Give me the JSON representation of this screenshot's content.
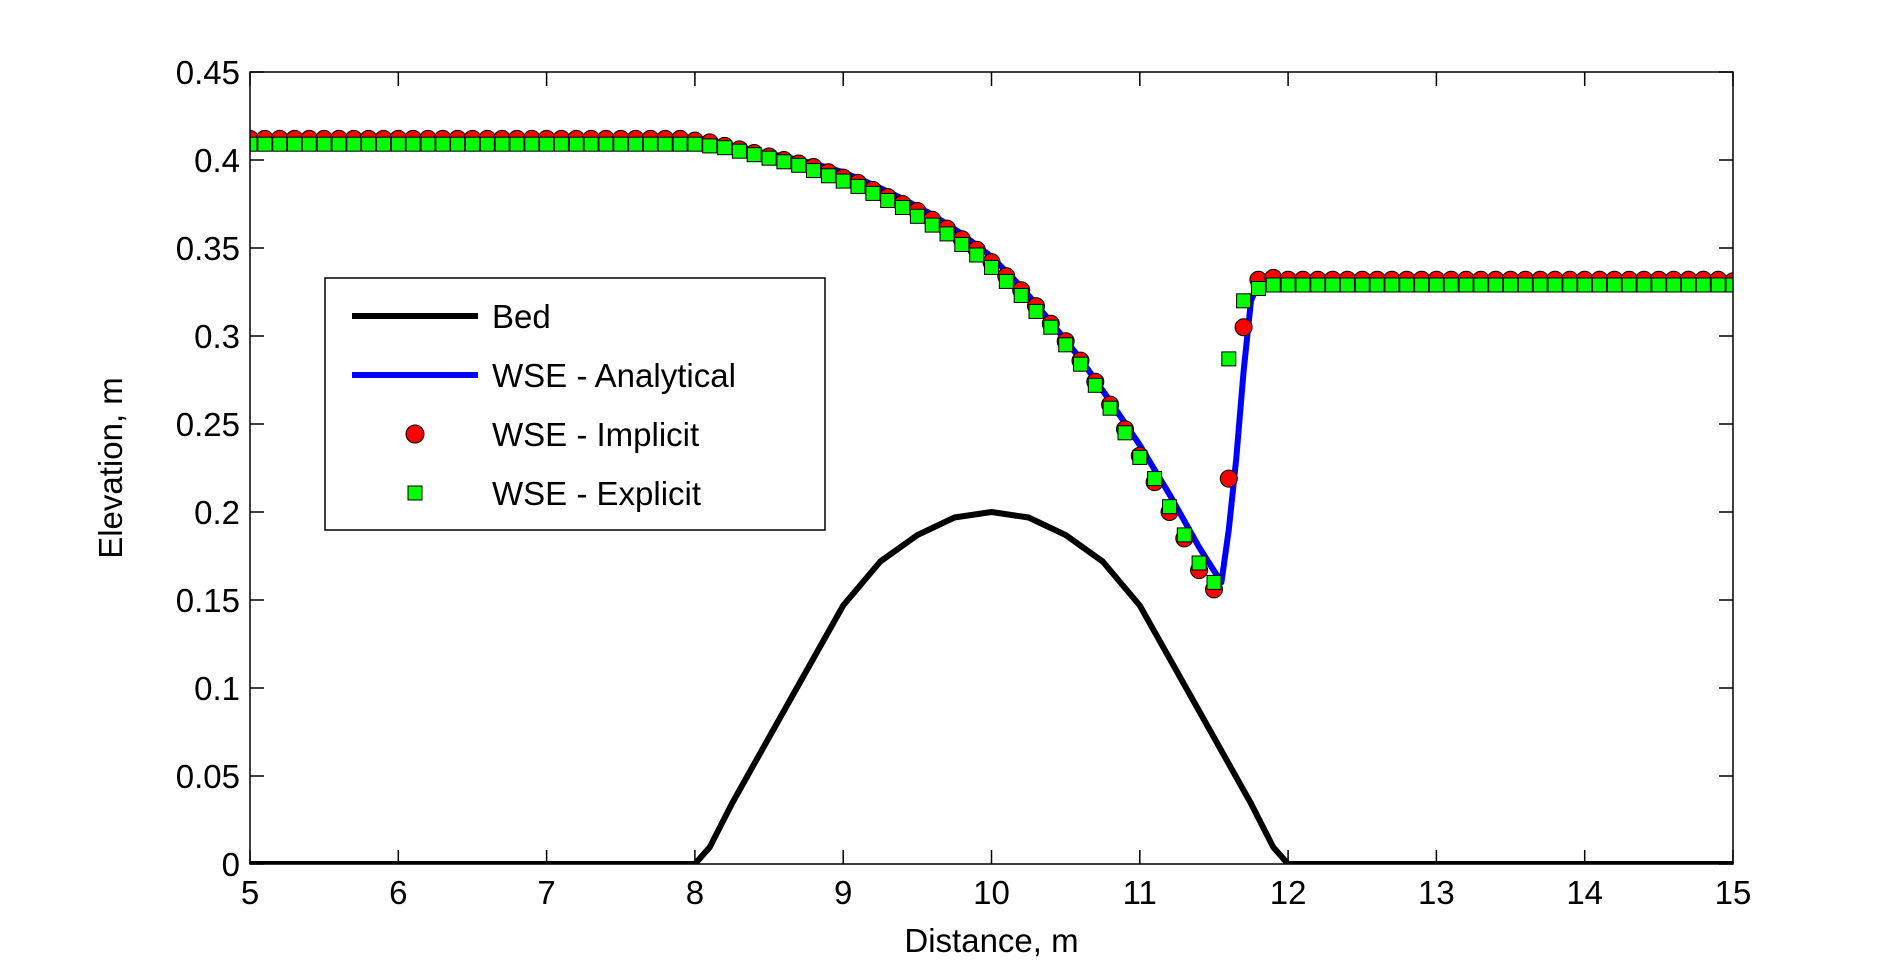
{
  "chart_data": {
    "type": "line",
    "title": "",
    "xlabel": "Distance, m",
    "ylabel": "Elevation, m",
    "xlim": [
      5,
      15
    ],
    "ylim": [
      0,
      0.45
    ],
    "xticks": [
      5,
      6,
      7,
      8,
      9,
      10,
      11,
      12,
      13,
      14,
      15
    ],
    "yticks": [
      0,
      0.05,
      0.1,
      0.15,
      0.2,
      0.25,
      0.3,
      0.35,
      0.4,
      0.45
    ],
    "xtick_labels": [
      "5",
      "6",
      "7",
      "8",
      "9",
      "10",
      "11",
      "12",
      "13",
      "14",
      "15"
    ],
    "ytick_labels": [
      "0",
      "0.05",
      "0.1",
      "0.15",
      "0.2",
      "0.25",
      "0.3",
      "0.35",
      "0.4",
      "0.45"
    ],
    "grid": false,
    "legend_position": "left",
    "series": [
      {
        "name": "Bed",
        "style": "line",
        "color": "#000000",
        "x": [
          5,
          7.9,
          8.0,
          8.1,
          8.25,
          8.5,
          8.75,
          9.0,
          9.25,
          9.5,
          9.75,
          10.0,
          10.25,
          10.5,
          10.75,
          11.0,
          11.25,
          11.5,
          11.75,
          11.9,
          12.0,
          12.1,
          15
        ],
        "y": [
          0,
          0,
          0.0,
          0.0095,
          0.0344,
          0.0719,
          0.1094,
          0.1469,
          0.1719,
          0.1869,
          0.1969,
          0.2,
          0.1969,
          0.1869,
          0.1719,
          0.1469,
          0.1094,
          0.0719,
          0.0344,
          0.0095,
          0.0,
          0,
          0
        ]
      },
      {
        "name": "WSE - Analytical",
        "style": "line",
        "color": "#0000ff",
        "x": [
          5,
          8.0,
          8.2,
          8.4,
          8.6,
          8.8,
          9.0,
          9.2,
          9.4,
          9.6,
          9.8,
          10.0,
          10.2,
          10.4,
          10.6,
          10.8,
          11.0,
          11.2,
          11.4,
          11.55,
          11.6,
          11.65,
          11.7,
          11.75,
          11.8,
          11.9,
          12.0,
          12.2,
          15
        ],
        "y": [
          0.41,
          0.41,
          0.408,
          0.405,
          0.402,
          0.398,
          0.393,
          0.386,
          0.378,
          0.369,
          0.358,
          0.345,
          0.328,
          0.308,
          0.287,
          0.263,
          0.238,
          0.21,
          0.18,
          0.16,
          0.19,
          0.23,
          0.28,
          0.32,
          0.33,
          0.331,
          0.331,
          0.331,
          0.331
        ]
      },
      {
        "name": "WSE - Implicit",
        "style": "marker-circle",
        "color": "#ff0000",
        "x": [
          5.0,
          5.1,
          5.2,
          5.3,
          5.4,
          5.5,
          5.6,
          5.7,
          5.8,
          5.9,
          6.0,
          6.1,
          6.2,
          6.3,
          6.4,
          6.5,
          6.6,
          6.7,
          6.8,
          6.9,
          7.0,
          7.1,
          7.2,
          7.3,
          7.4,
          7.5,
          7.6,
          7.7,
          7.8,
          7.9,
          8.0,
          8.1,
          8.2,
          8.3,
          8.4,
          8.5,
          8.6,
          8.7,
          8.8,
          8.9,
          9.0,
          9.1,
          9.2,
          9.3,
          9.4,
          9.5,
          9.6,
          9.7,
          9.8,
          9.9,
          10.0,
          10.1,
          10.2,
          10.3,
          10.4,
          10.5,
          10.6,
          10.7,
          10.8,
          10.9,
          11.0,
          11.1,
          11.2,
          11.3,
          11.4,
          11.5,
          11.6,
          11.7,
          11.8,
          11.9,
          12.0,
          12.1,
          12.2,
          12.3,
          12.4,
          12.5,
          12.6,
          12.7,
          12.8,
          12.9,
          13.0,
          13.1,
          13.2,
          13.3,
          13.4,
          13.5,
          13.6,
          13.7,
          13.8,
          13.9,
          14.0,
          14.1,
          14.2,
          14.3,
          14.4,
          14.5,
          14.6,
          14.7,
          14.8,
          14.9,
          15.0
        ],
        "y": [
          0.412,
          0.412,
          0.412,
          0.412,
          0.412,
          0.412,
          0.412,
          0.412,
          0.412,
          0.412,
          0.412,
          0.412,
          0.412,
          0.412,
          0.412,
          0.412,
          0.412,
          0.412,
          0.412,
          0.412,
          0.412,
          0.412,
          0.412,
          0.412,
          0.412,
          0.412,
          0.412,
          0.412,
          0.412,
          0.412,
          0.411,
          0.41,
          0.408,
          0.406,
          0.404,
          0.402,
          0.4,
          0.398,
          0.396,
          0.393,
          0.39,
          0.387,
          0.383,
          0.379,
          0.375,
          0.371,
          0.366,
          0.361,
          0.355,
          0.349,
          0.342,
          0.334,
          0.326,
          0.317,
          0.307,
          0.297,
          0.286,
          0.274,
          0.261,
          0.247,
          0.232,
          0.217,
          0.2,
          0.185,
          0.167,
          0.156,
          0.219,
          0.305,
          0.332,
          0.333,
          0.332,
          0.332,
          0.332,
          0.332,
          0.332,
          0.332,
          0.332,
          0.332,
          0.332,
          0.332,
          0.332,
          0.332,
          0.332,
          0.332,
          0.332,
          0.332,
          0.332,
          0.332,
          0.332,
          0.332,
          0.332,
          0.332,
          0.332,
          0.332,
          0.332,
          0.332,
          0.332,
          0.332,
          0.332,
          0.332,
          0.331
        ]
      },
      {
        "name": "WSE - Explicit",
        "style": "marker-square",
        "color": "#00ff00",
        "x": [
          5.0,
          5.1,
          5.2,
          5.3,
          5.4,
          5.5,
          5.6,
          5.7,
          5.8,
          5.9,
          6.0,
          6.1,
          6.2,
          6.3,
          6.4,
          6.5,
          6.6,
          6.7,
          6.8,
          6.9,
          7.0,
          7.1,
          7.2,
          7.3,
          7.4,
          7.5,
          7.6,
          7.7,
          7.8,
          7.9,
          8.0,
          8.1,
          8.2,
          8.3,
          8.4,
          8.5,
          8.6,
          8.7,
          8.8,
          8.9,
          9.0,
          9.1,
          9.2,
          9.3,
          9.4,
          9.5,
          9.6,
          9.7,
          9.8,
          9.9,
          10.0,
          10.1,
          10.2,
          10.3,
          10.4,
          10.5,
          10.6,
          10.7,
          10.8,
          10.9,
          11.0,
          11.1,
          11.2,
          11.3,
          11.4,
          11.5,
          11.6,
          11.7,
          11.8,
          11.9,
          12.0,
          12.1,
          12.2,
          12.3,
          12.4,
          12.5,
          12.6,
          12.7,
          12.8,
          12.9,
          13.0,
          13.1,
          13.2,
          13.3,
          13.4,
          13.5,
          13.6,
          13.7,
          13.8,
          13.9,
          14.0,
          14.1,
          14.2,
          14.3,
          14.4,
          14.5,
          14.6,
          14.7,
          14.8,
          14.9,
          15.0
        ],
        "y": [
          0.409,
          0.409,
          0.409,
          0.409,
          0.409,
          0.409,
          0.409,
          0.409,
          0.409,
          0.409,
          0.409,
          0.409,
          0.409,
          0.409,
          0.409,
          0.409,
          0.409,
          0.409,
          0.409,
          0.409,
          0.409,
          0.409,
          0.409,
          0.409,
          0.409,
          0.409,
          0.409,
          0.409,
          0.409,
          0.409,
          0.409,
          0.408,
          0.407,
          0.405,
          0.403,
          0.401,
          0.399,
          0.397,
          0.394,
          0.391,
          0.388,
          0.385,
          0.381,
          0.377,
          0.373,
          0.368,
          0.363,
          0.358,
          0.352,
          0.346,
          0.339,
          0.331,
          0.323,
          0.314,
          0.305,
          0.295,
          0.284,
          0.272,
          0.259,
          0.245,
          0.231,
          0.219,
          0.203,
          0.187,
          0.171,
          0.16,
          0.287,
          0.32,
          0.327,
          0.329,
          0.329,
          0.329,
          0.329,
          0.329,
          0.329,
          0.329,
          0.329,
          0.329,
          0.329,
          0.329,
          0.329,
          0.329,
          0.329,
          0.329,
          0.329,
          0.329,
          0.329,
          0.329,
          0.329,
          0.329,
          0.329,
          0.329,
          0.329,
          0.329,
          0.329,
          0.329,
          0.329,
          0.329,
          0.329,
          0.329,
          0.329
        ]
      }
    ]
  }
}
